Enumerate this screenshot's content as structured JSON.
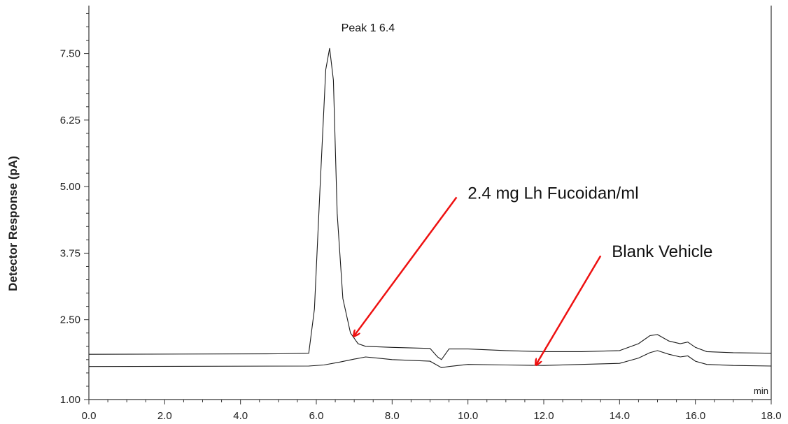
{
  "chart_data": {
    "type": "line",
    "title": "",
    "xlabel": "",
    "x_unit": "min",
    "ylabel": "Detector Response (pA)",
    "xlim": [
      0.0,
      18.0
    ],
    "ylim": [
      1.0,
      8.4
    ],
    "x_ticks": [
      "0.0",
      "2.0",
      "4.0",
      "6.0",
      "8.0",
      "10.0",
      "12.0",
      "14.0",
      "16.0",
      "18.0"
    ],
    "x_tick_values": [
      0,
      2,
      4,
      6,
      8,
      10,
      12,
      14,
      16,
      18
    ],
    "y_ticks": [
      "1.00",
      "2.50",
      "3.75",
      "5.00",
      "6.25",
      "7.50"
    ],
    "y_tick_values": [
      1.0,
      2.5,
      3.75,
      5.0,
      6.25,
      7.5
    ],
    "grid": false,
    "series": [
      {
        "label": "2.4 mg Lh Fucoidan/ml",
        "x": [
          0.0,
          5.0,
          5.8,
          5.95,
          6.1,
          6.25,
          6.35,
          6.45,
          6.55,
          6.7,
          6.9,
          7.1,
          7.3,
          8.0,
          9.0,
          9.2,
          9.3,
          9.5,
          10.0,
          11.0,
          12.0,
          13.0,
          14.0,
          14.5,
          14.8,
          15.0,
          15.3,
          15.6,
          15.8,
          16.0,
          16.3,
          17.0,
          18.0
        ],
        "y": [
          1.85,
          1.86,
          1.87,
          2.7,
          5.0,
          7.2,
          7.6,
          7.0,
          4.5,
          2.9,
          2.25,
          2.05,
          2.0,
          1.98,
          1.96,
          1.8,
          1.75,
          1.95,
          1.95,
          1.92,
          1.9,
          1.9,
          1.92,
          2.05,
          2.2,
          2.22,
          2.1,
          2.05,
          2.08,
          1.98,
          1.9,
          1.88,
          1.87
        ]
      },
      {
        "label": "Blank Vehicle",
        "x": [
          0.0,
          5.8,
          6.2,
          6.6,
          7.0,
          7.3,
          7.6,
          8.0,
          9.0,
          9.3,
          9.5,
          10.0,
          11.0,
          12.0,
          13.0,
          14.0,
          14.5,
          14.8,
          15.0,
          15.3,
          15.6,
          15.8,
          16.0,
          16.3,
          17.0,
          18.0
        ],
        "y": [
          1.62,
          1.63,
          1.65,
          1.7,
          1.76,
          1.8,
          1.78,
          1.75,
          1.72,
          1.6,
          1.62,
          1.66,
          1.65,
          1.64,
          1.66,
          1.68,
          1.78,
          1.88,
          1.92,
          1.85,
          1.8,
          1.82,
          1.72,
          1.66,
          1.64,
          1.63
        ]
      }
    ],
    "annotations": [
      {
        "text": "Peak 1 6.4",
        "x": 6.4,
        "y": 7.6,
        "type": "label"
      },
      {
        "text": "2.4 mg Lh Fucoidan/ml",
        "type": "arrow",
        "arrow_to": [
          7.0,
          2.2
        ],
        "arrow_from": [
          9.7,
          4.8
        ]
      },
      {
        "text": "Blank Vehicle",
        "type": "arrow",
        "arrow_to": [
          11.8,
          1.66
        ],
        "arrow_from": [
          13.5,
          3.7
        ]
      }
    ],
    "colors": {
      "trace": "#1a1a1a",
      "arrow": "#ee1111",
      "axis": "#333333"
    }
  }
}
